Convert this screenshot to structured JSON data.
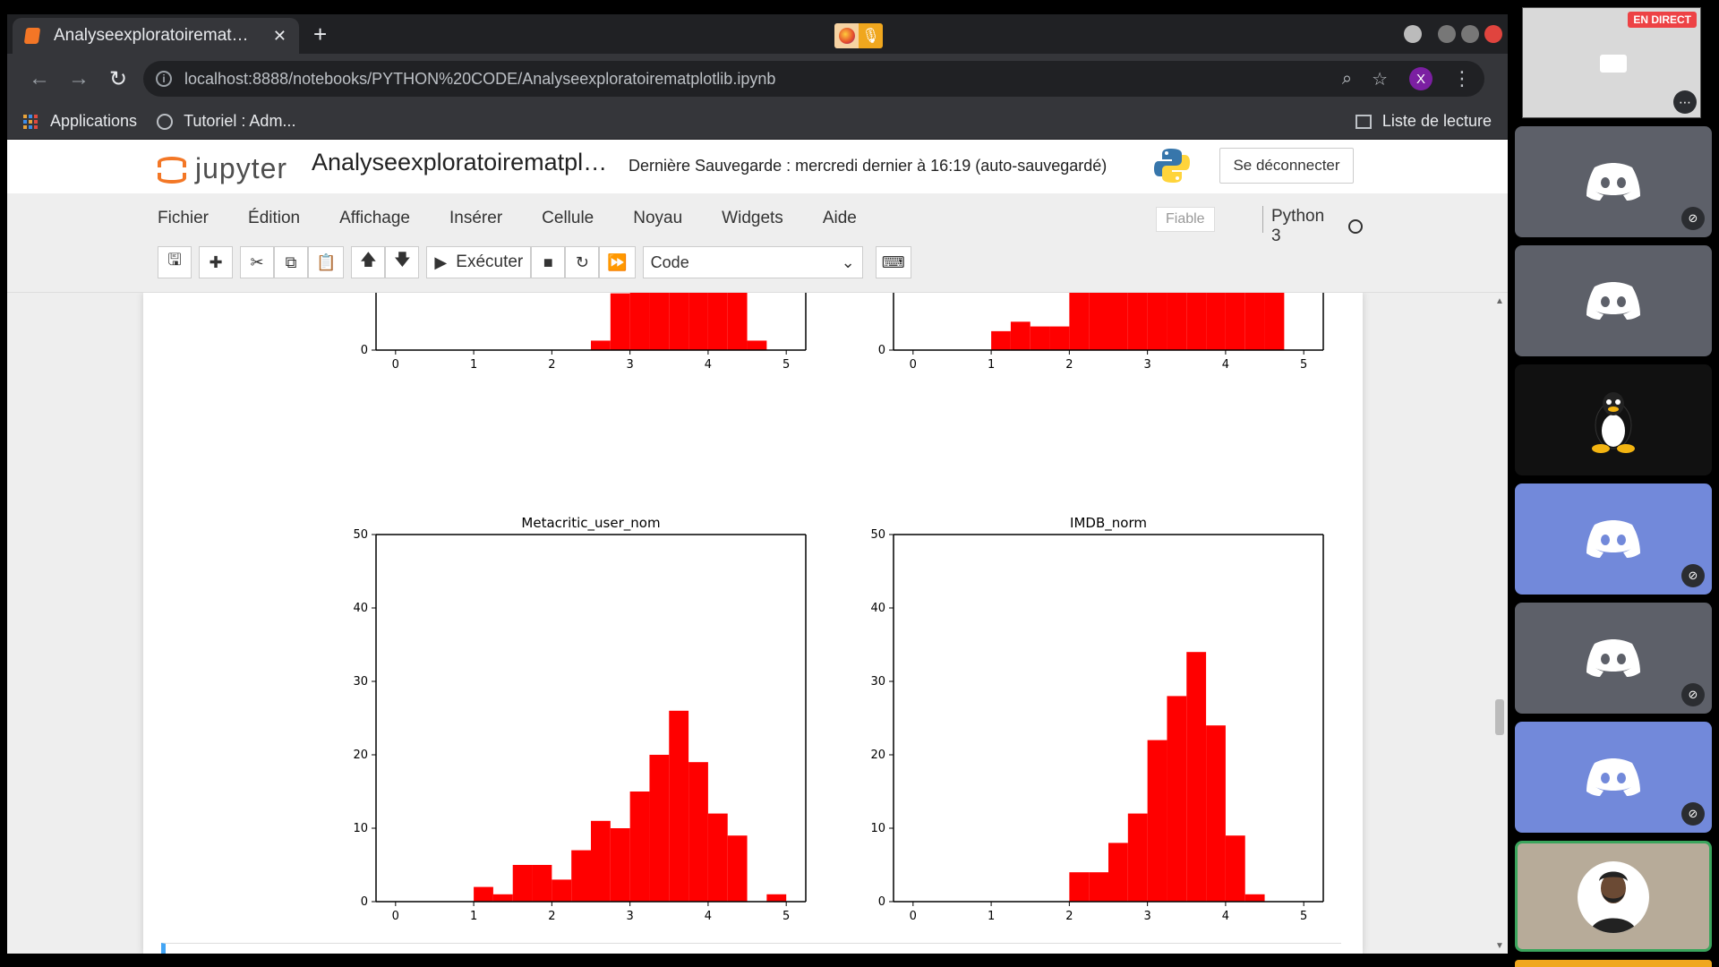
{
  "browser": {
    "tab_title": "Analyseexploratoiremat…",
    "url": "localhost:8888/notebooks/PYTHON%20CODE/Analyseexploratoirematplotlib.ipynb",
    "profile_initial": "X",
    "ext_glyph": "🎙",
    "bookmarks": [
      {
        "label": "Applications"
      },
      {
        "label": "Tutoriel : Adm..."
      }
    ],
    "reading_list": "Liste de lecture"
  },
  "jupyter": {
    "logo_text": "jupyter",
    "notebook_name": "Analyseexploratoirematpl…",
    "save_status": "Dernière Sauvegarde : mercredi dernier à 16:19  (auto-sauvegardé)",
    "logout": "Se déconnecter",
    "menu": [
      "Fichier",
      "Édition",
      "Affichage",
      "Insérer",
      "Cellule",
      "Noyau",
      "Widgets",
      "Aide"
    ],
    "trusted": "Fiable",
    "kernel": "Python 3",
    "run_label": "Exécuter",
    "cell_type": "Code"
  },
  "chart_data": [
    {
      "type": "bar",
      "title": "",
      "bin_edges": [
        0.5,
        0.75,
        1.0,
        1.25,
        1.5,
        1.75,
        2.0,
        2.25,
        2.5,
        2.75,
        3.0,
        3.25,
        3.5,
        3.75,
        4.0,
        4.25,
        4.5,
        4.75,
        5.0
      ],
      "values": [
        0,
        0,
        0,
        0,
        0,
        0,
        0,
        0,
        2,
        12,
        16,
        16,
        16,
        16,
        16,
        16,
        2,
        0
      ],
      "xlim": [
        -0.25,
        5.25
      ],
      "ylim": [
        0,
        50
      ],
      "xticks": [
        0,
        1,
        2,
        3,
        4,
        5
      ],
      "yticks": [
        0
      ],
      "color": "#ff0000"
    },
    {
      "type": "bar",
      "title": "",
      "bin_edges": [
        1.0,
        1.25,
        1.5,
        1.75,
        2.0,
        2.25,
        2.5,
        2.75,
        3.0,
        3.25,
        3.5,
        3.75,
        4.0,
        4.25,
        4.5,
        4.75
      ],
      "values": [
        4,
        6,
        5,
        5,
        16,
        16,
        16,
        16,
        16,
        15,
        16,
        16,
        16,
        16,
        16
      ],
      "xlim": [
        -0.25,
        5.25
      ],
      "ylim": [
        0,
        50
      ],
      "xticks": [
        0,
        1,
        2,
        3,
        4,
        5
      ],
      "yticks": [
        0
      ],
      "color": "#ff0000"
    },
    {
      "type": "bar",
      "title": "Metacritic_user_nom",
      "bin_edges": [
        1.0,
        1.25,
        1.5,
        1.75,
        2.0,
        2.25,
        2.5,
        2.75,
        3.0,
        3.25,
        3.5,
        3.75,
        4.0,
        4.25,
        4.5,
        4.75,
        5.0
      ],
      "values": [
        2,
        1,
        5,
        5,
        3,
        7,
        11,
        10,
        15,
        20,
        26,
        19,
        12,
        9,
        0,
        1
      ],
      "xlim": [
        -0.25,
        5.25
      ],
      "ylim": [
        0,
        50
      ],
      "xticks": [
        0,
        1,
        2,
        3,
        4,
        5
      ],
      "yticks": [
        0,
        10,
        20,
        30,
        40,
        50
      ],
      "color": "#ff0000"
    },
    {
      "type": "bar",
      "title": "IMDB_norm",
      "bin_edges": [
        2.0,
        2.25,
        2.5,
        2.75,
        3.0,
        3.25,
        3.5,
        3.75,
        4.0,
        4.25,
        4.5
      ],
      "values": [
        4,
        4,
        8,
        12,
        22,
        28,
        34,
        24,
        9,
        1
      ],
      "xlim": [
        -0.25,
        5.25
      ],
      "ylim": [
        0,
        50
      ],
      "xticks": [
        0,
        1,
        2,
        3,
        4,
        5
      ],
      "yticks": [
        0,
        10,
        20,
        30,
        40,
        50
      ],
      "color": "#ff0000"
    }
  ],
  "side_panel": {
    "live_badge": "EN DIRECT"
  }
}
